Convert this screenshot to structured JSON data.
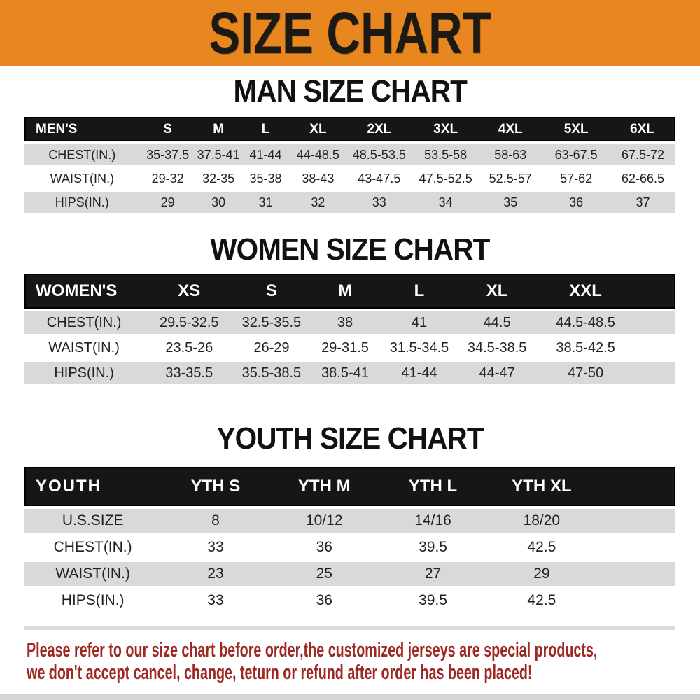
{
  "banner": {
    "title": "SIZE CHART"
  },
  "sections": [
    {
      "id": "men",
      "heading": "MAN SIZE CHART",
      "table": {
        "corner_label": "MEN'S",
        "columns": [
          "S",
          "M",
          "L",
          "XL",
          "2XL",
          "3XL",
          "4XL",
          "5XL",
          "6XL"
        ],
        "rows": [
          {
            "label": "CHEST(IN.)",
            "values": [
              "35-37.5",
              "37.5-41",
              "41-44",
              "44-48.5",
              "48.5-53.5",
              "53.5-58",
              "58-63",
              "63-67.5",
              "67.5-72"
            ]
          },
          {
            "label": "WAIST(IN.)",
            "values": [
              "29-32",
              "32-35",
              "35-38",
              "38-43",
              "43-47.5",
              "47.5-52.5",
              "52.5-57",
              "57-62",
              "62-66.5"
            ]
          },
          {
            "label": "HIPS(IN.)",
            "values": [
              "29",
              "30",
              "31",
              "32",
              "33",
              "34",
              "35",
              "36",
              "37"
            ]
          }
        ]
      }
    },
    {
      "id": "women",
      "heading": "WOMEN SIZE CHART",
      "table": {
        "corner_label": "WOMEN'S",
        "columns": [
          "XS",
          "S",
          "M",
          "L",
          "XL",
          "XXL"
        ],
        "rows": [
          {
            "label": "CHEST(IN.)",
            "values": [
              "29.5-32.5",
              "32.5-35.5",
              "38",
              "41",
              "44.5",
              "44.5-48.5"
            ]
          },
          {
            "label": "WAIST(IN.)",
            "values": [
              "23.5-26",
              "26-29",
              "29-31.5",
              "31.5-34.5",
              "34.5-38.5",
              "38.5-42.5"
            ]
          },
          {
            "label": "HIPS(IN.)",
            "values": [
              "33-35.5",
              "35.5-38.5",
              "38.5-41",
              "41-44",
              "44-47",
              "47-50"
            ]
          }
        ]
      }
    },
    {
      "id": "youth",
      "heading": "YOUTH SIZE CHART",
      "table": {
        "corner_label": "YOUTH",
        "columns": [
          "YTH S",
          "YTH M",
          "YTH L",
          "YTH XL"
        ],
        "rows": [
          {
            "label": "U.S.SIZE",
            "values": [
              "8",
              "10/12",
              "14/16",
              "18/20"
            ]
          },
          {
            "label": "CHEST(IN.)",
            "values": [
              "33",
              "36",
              "39.5",
              "42.5"
            ]
          },
          {
            "label": "WAIST(IN.)",
            "values": [
              "23",
              "25",
              "27",
              "29"
            ]
          },
          {
            "label": "HIPS(IN.)",
            "values": [
              "33",
              "36",
              "39.5",
              "42.5"
            ]
          }
        ]
      }
    }
  ],
  "footer": {
    "line1": "Please refer to our size chart before order,the customized jerseys are special products,",
    "line2": "we don't accept cancel, change, teturn or refund after order has been placed!"
  },
  "colors": {
    "banner_orange": "#E8861F",
    "bar_black": "#161616",
    "row_gray": "#D9D9D9",
    "row_white": "#FFFFFF",
    "text_dark": "#222222",
    "notice_red": "#9E2823"
  }
}
